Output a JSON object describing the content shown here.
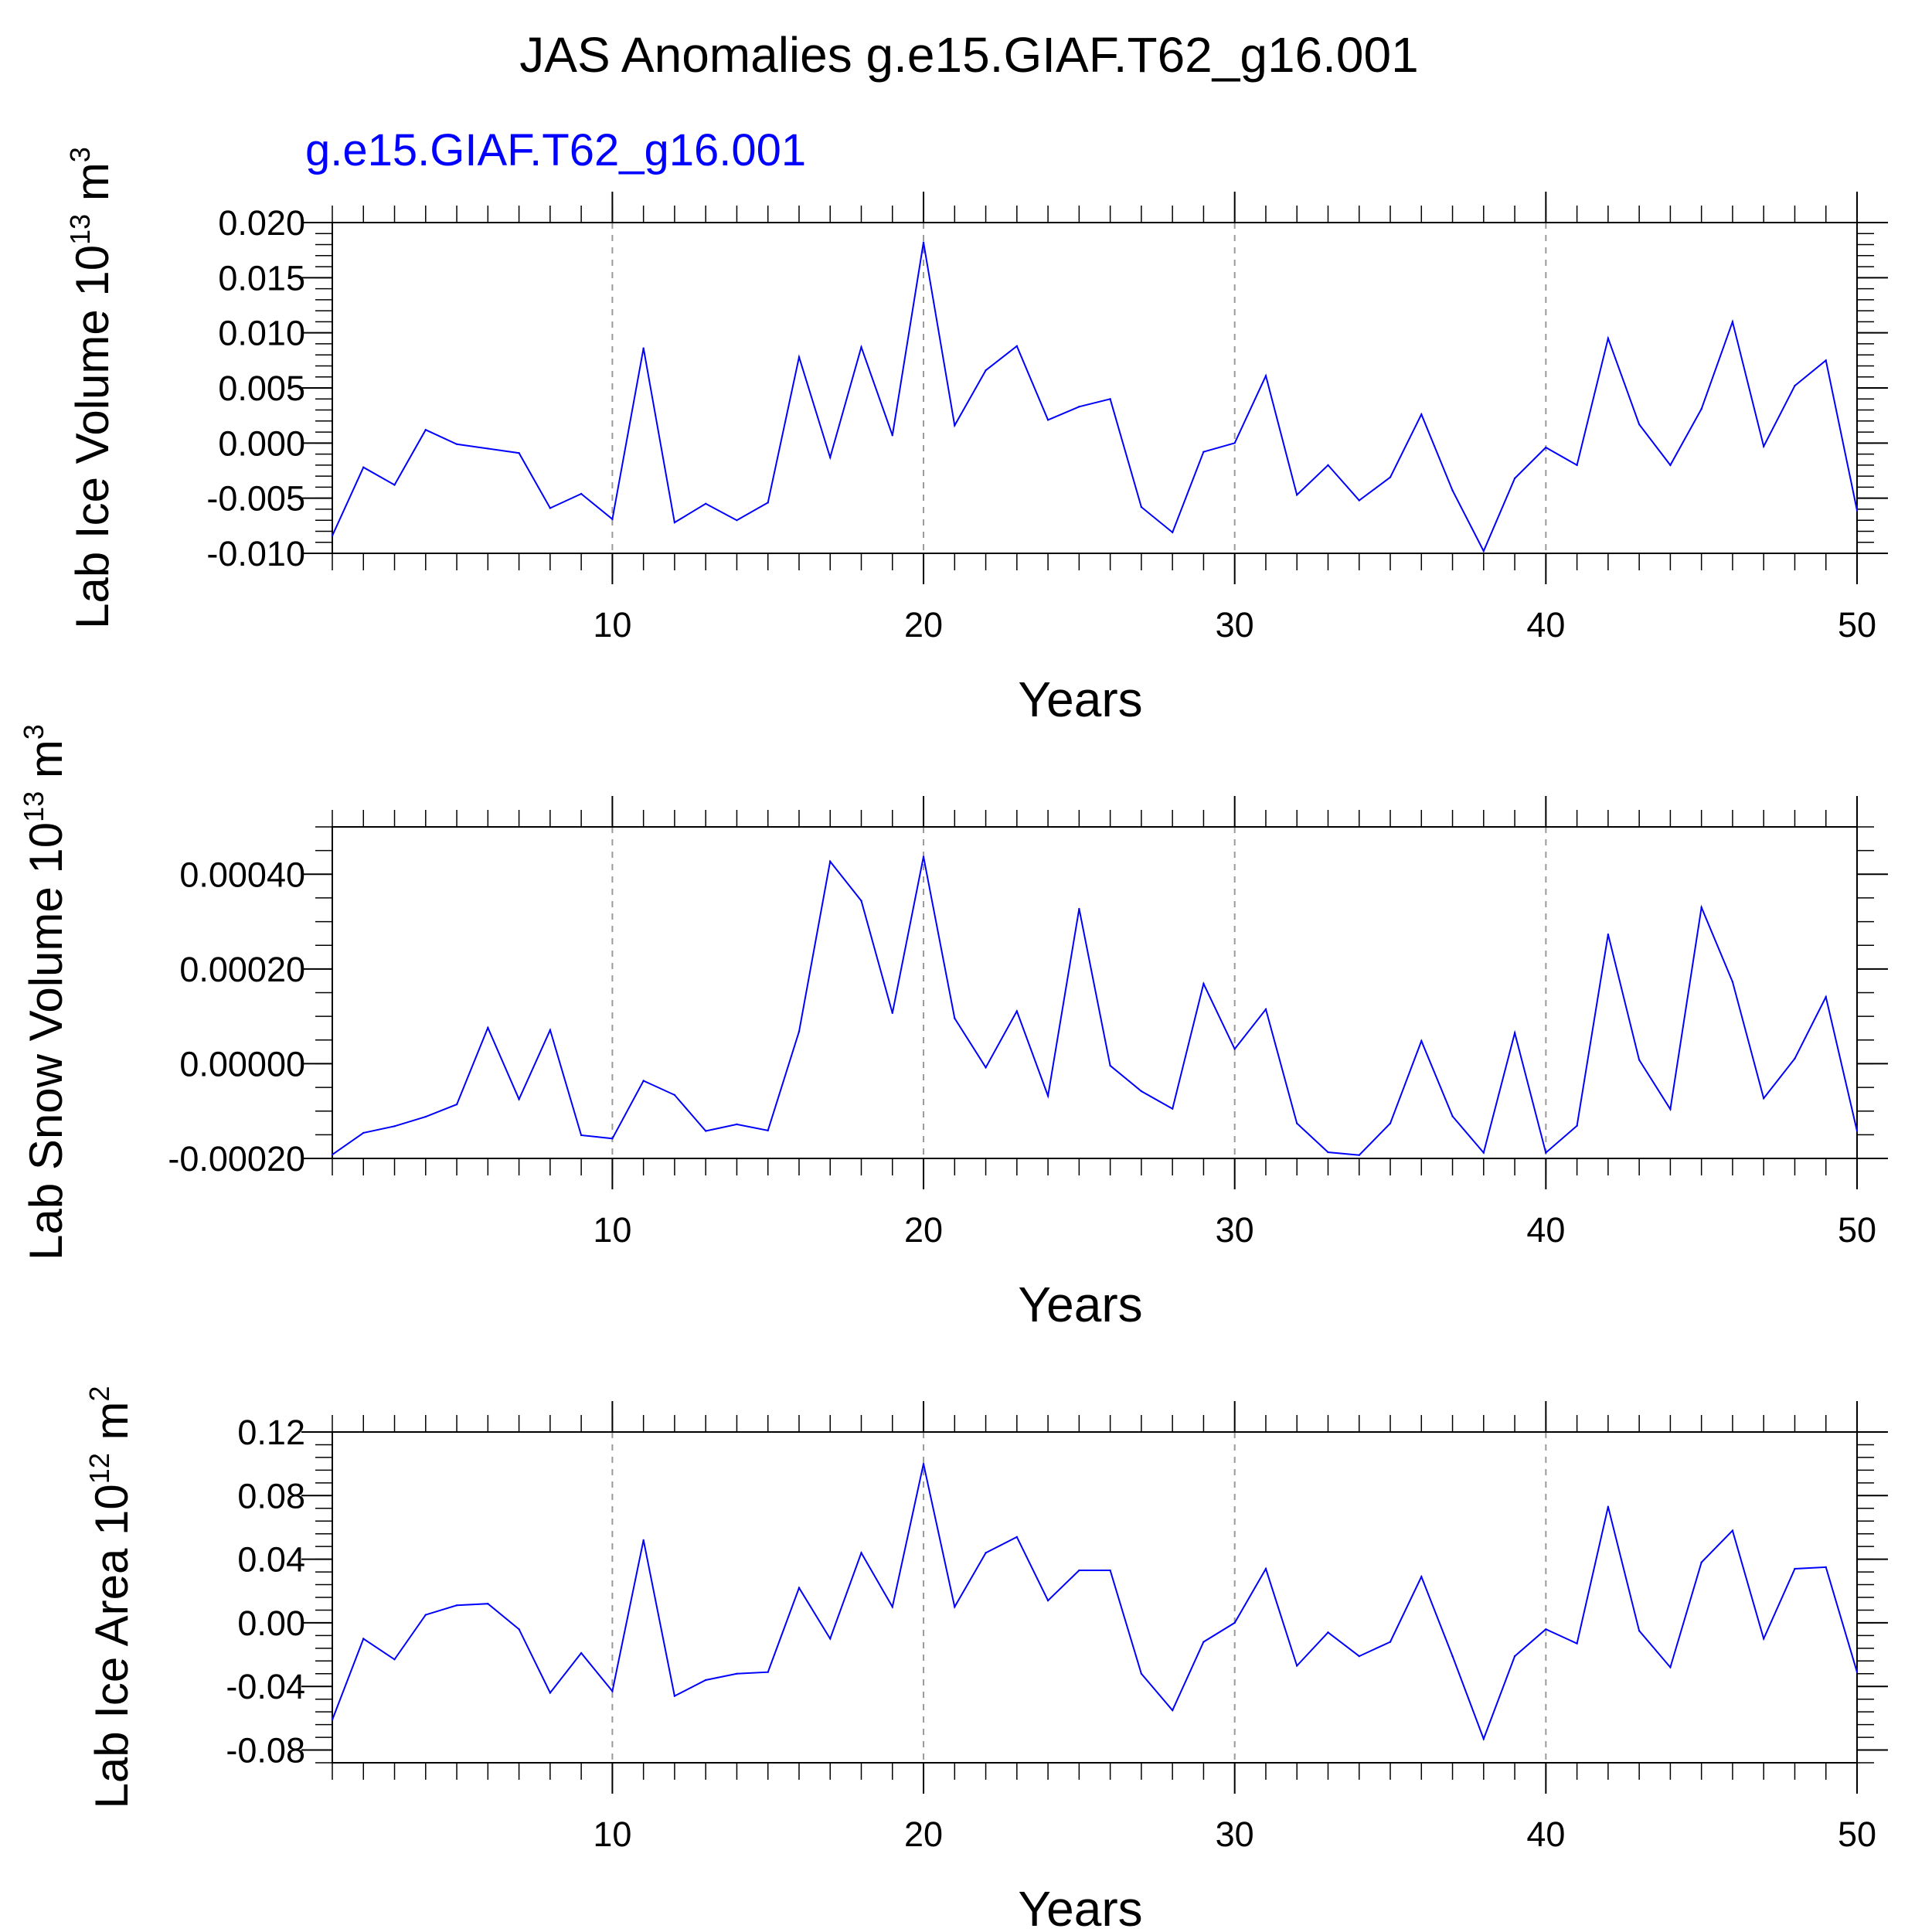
{
  "figure": {
    "title": "JAS Anomalies g.e15.GIAF.T62_g16.001"
  },
  "chart_data": [
    {
      "type": "line",
      "subtitle": "g.e15.GIAF.T62_g16.001",
      "ylabel": "Lab Ice Volume 10",
      "ylabel_exp": "13",
      "ylabel_unit": " m",
      "ylabel_unit_exp": "3",
      "xlabel": "Years",
      "xlim": [
        1,
        50
      ],
      "ylim": [
        -0.01,
        0.02
      ],
      "x_ticks": [
        10,
        20,
        30,
        40,
        50
      ],
      "x_tick_labels": [
        "10",
        "20",
        "30",
        "40",
        "50"
      ],
      "y_ticks": [
        -0.01,
        -0.005,
        0.0,
        0.005,
        0.01,
        0.015,
        0.02
      ],
      "y_tick_labels": [
        "-0.010",
        "-0.005",
        "0.000",
        "0.005",
        "0.010",
        "0.015",
        "0.020"
      ],
      "y_minor_step": 0.001,
      "series_color": "#0000ff",
      "series": [
        {
          "name": "g.e15.GIAF.T62_g16.001",
          "x": [
            1,
            2,
            3,
            4,
            5,
            6,
            7,
            8,
            9,
            10,
            11,
            12,
            13,
            14,
            15,
            16,
            17,
            18,
            19,
            20,
            21,
            22,
            23,
            24,
            25,
            26,
            27,
            28,
            29,
            30,
            31,
            32,
            33,
            34,
            35,
            36,
            37,
            38,
            39,
            40,
            41,
            42,
            43,
            44,
            45,
            46,
            47,
            48,
            49,
            50
          ],
          "values": [
            -0.0084,
            -0.0022,
            -0.0038,
            0.0012,
            -0.0001,
            -0.0005,
            -0.0009,
            -0.0059,
            -0.0046,
            -0.0069,
            0.0086,
            -0.0072,
            -0.0055,
            -0.007,
            -0.0054,
            0.0078,
            -0.0013,
            0.0087,
            0.0007,
            0.0182,
            0.0016,
            0.0066,
            0.0088,
            0.0021,
            0.0033,
            0.004,
            -0.0058,
            -0.0081,
            -0.0008,
            0.0,
            0.0061,
            -0.0047,
            -0.002,
            -0.0052,
            -0.0031,
            0.0026,
            -0.0043,
            -0.0098,
            -0.0032,
            -0.0004,
            -0.002,
            0.0095,
            0.0017,
            -0.002,
            0.0031,
            0.011,
            -0.0003,
            0.0052,
            0.0075,
            -0.0061
          ]
        }
      ]
    },
    {
      "type": "line",
      "ylabel": "Lab Snow Volume 10",
      "ylabel_exp": "13",
      "ylabel_unit": " m",
      "ylabel_unit_exp": "3",
      "xlabel": "Years",
      "xlim": [
        1,
        50
      ],
      "ylim": [
        -0.0002,
        0.0005
      ],
      "x_ticks": [
        10,
        20,
        30,
        40,
        50
      ],
      "x_tick_labels": [
        "10",
        "20",
        "30",
        "40",
        "50"
      ],
      "y_ticks": [
        -0.0002,
        0.0,
        0.0002,
        0.0004
      ],
      "y_tick_labels": [
        "-0.00020",
        "0.00000",
        "0.00020",
        "0.00040"
      ],
      "y_minor_step": 5e-05,
      "series_color": "#0000ff",
      "series": [
        {
          "name": "g.e15.GIAF.T62_g16.001",
          "x": [
            1,
            2,
            3,
            4,
            5,
            6,
            7,
            8,
            9,
            10,
            11,
            12,
            13,
            14,
            15,
            16,
            17,
            18,
            19,
            20,
            21,
            22,
            23,
            24,
            25,
            26,
            27,
            28,
            29,
            30,
            31,
            32,
            33,
            34,
            35,
            36,
            37,
            38,
            39,
            40,
            41,
            42,
            43,
            44,
            45,
            46,
            47,
            48,
            49,
            50
          ],
          "values": [
            -0.000192,
            -0.000146,
            -0.000132,
            -0.000112,
            -8.6e-05,
            7.6e-05,
            -7.5e-05,
            7.1e-05,
            -0.000151,
            -0.000158,
            -3.6e-05,
            -6.6e-05,
            -0.000142,
            -0.000128,
            -0.000141,
            6.8e-05,
            0.000427,
            0.000344,
            0.000107,
            0.000437,
            9.6e-05,
            -8e-06,
            0.000111,
            -6.8e-05,
            0.000327,
            -4e-06,
            -5.8e-05,
            -9.5e-05,
            0.000169,
            3.1e-05,
            0.000115,
            -0.000126,
            -0.000187,
            -0.000193,
            -0.000126,
            4.8e-05,
            -0.000111,
            -0.000188,
            6.5e-05,
            -0.000188,
            -0.000131,
            0.000273,
            8e-06,
            -9.6e-05,
            0.00033,
            0.000173,
            -7.3e-05,
            1.1e-05,
            0.000141,
            -0.000142
          ]
        }
      ]
    },
    {
      "type": "line",
      "ylabel": "Lab Ice Area 10",
      "ylabel_exp": "12",
      "ylabel_unit": " m",
      "ylabel_unit_exp": "2",
      "xlabel": "Years",
      "xlim": [
        1,
        50
      ],
      "ylim": [
        -0.088,
        0.12
      ],
      "x_ticks": [
        10,
        20,
        30,
        40,
        50
      ],
      "x_tick_labels": [
        "10",
        "20",
        "30",
        "40",
        "50"
      ],
      "y_ticks": [
        -0.08,
        -0.04,
        0.0,
        0.04,
        0.08,
        0.12
      ],
      "y_tick_labels": [
        "-0.08",
        "-0.04",
        "0.00",
        "0.04",
        "0.08",
        "0.12"
      ],
      "y_minor_step": 0.008,
      "series_color": "#0000ff",
      "series": [
        {
          "name": "g.e15.GIAF.T62_g16.001",
          "x": [
            1,
            2,
            3,
            4,
            5,
            6,
            7,
            8,
            9,
            10,
            11,
            12,
            13,
            14,
            15,
            16,
            17,
            18,
            19,
            20,
            21,
            22,
            23,
            24,
            25,
            26,
            27,
            28,
            29,
            30,
            31,
            32,
            33,
            34,
            35,
            36,
            37,
            38,
            39,
            40,
            41,
            42,
            43,
            44,
            45,
            46,
            47,
            48,
            49,
            50
          ],
          "values": [
            -0.061,
            -0.01,
            -0.023,
            0.005,
            0.011,
            0.012,
            -0.004,
            -0.044,
            -0.019,
            -0.043,
            0.052,
            -0.046,
            -0.036,
            -0.032,
            -0.031,
            0.022,
            -0.01,
            0.044,
            0.01,
            0.1,
            0.01,
            0.044,
            0.054,
            0.014,
            0.033,
            0.033,
            -0.032,
            -0.055,
            -0.012,
            0.0,
            0.034,
            -0.027,
            -0.006,
            -0.021,
            -0.012,
            0.029,
            -0.021,
            -0.073,
            -0.021,
            -0.004,
            -0.013,
            0.073,
            -0.005,
            -0.028,
            0.038,
            0.058,
            -0.01,
            0.034,
            0.035,
            -0.031
          ]
        }
      ]
    }
  ]
}
